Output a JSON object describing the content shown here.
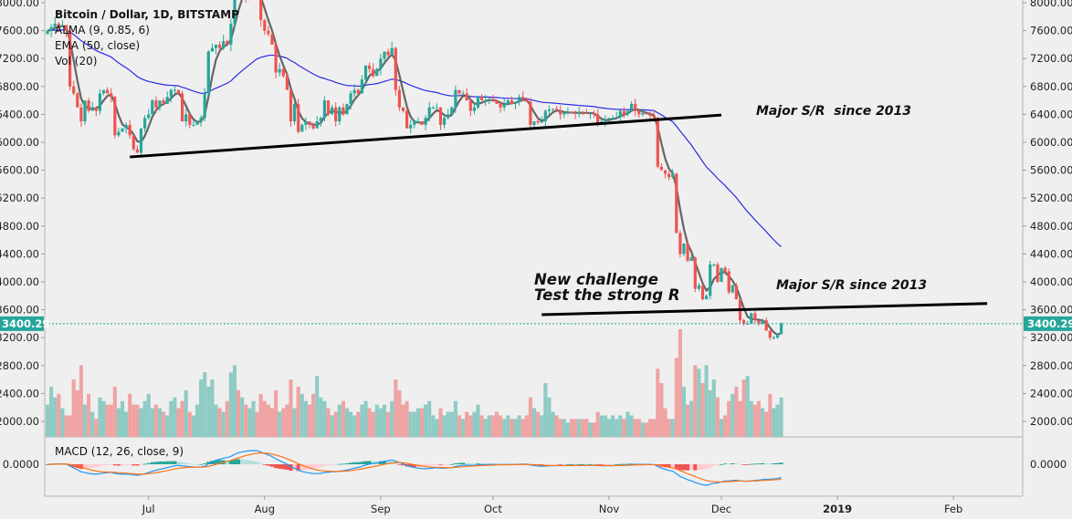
{
  "legend": {
    "title": "Bitcoin / Dollar, 1D, BITSTAMP",
    "alma": "ALMA (9, 0.85, 6)",
    "ema": "EMA (50, close)",
    "vol": "Vol (20)",
    "macd": "MACD (12, 26, close, 9)"
  },
  "annotations": {
    "new_challenge_line1": "New challenge",
    "new_challenge_line2": "Test the strong R",
    "major_sr_upper": "Major S/R  since 2013",
    "major_sr_lower": "Major S/R since 2013"
  },
  "colors": {
    "up": "#26a69a",
    "down": "#ef5350",
    "vol_up": "#8ecbc4",
    "vol_down": "#efa3a2",
    "ema": "#2a2ae6",
    "alma": "#555555",
    "macd": "#2196f3",
    "signal": "#ff7316",
    "background": "#efefef",
    "last_price": "#26a69a"
  },
  "chart_data": {
    "type": "candlestick",
    "symbol": "Bitcoin / Dollar",
    "interval": "1D",
    "exchange": "BITSTAMP",
    "start_date": "2018-06-04",
    "last_price": "3400.29",
    "price_ticks": [
      "8000.00",
      "7600.00",
      "7200.00",
      "6800.00",
      "6400.00",
      "6000.00",
      "5600.00",
      "5200.00",
      "4800.00",
      "4400.00",
      "4000.00",
      "3600.00",
      "3200.00",
      "2800.00",
      "2400.00",
      "2000.00"
    ],
    "macd_ticks": [
      "0.0000"
    ],
    "time_ticks": [
      {
        "label": "Jul",
        "date": "2018-07-01",
        "bold": false
      },
      {
        "label": "Aug",
        "date": "2018-08-01",
        "bold": false
      },
      {
        "label": "Sep",
        "date": "2018-09-01",
        "bold": false
      },
      {
        "label": "Oct",
        "date": "2018-10-01",
        "bold": false
      },
      {
        "label": "Nov",
        "date": "2018-11-01",
        "bold": false
      },
      {
        "label": "Dec",
        "date": "2018-12-01",
        "bold": false
      },
      {
        "label": "2019",
        "date": "2019-01-01",
        "bold": true
      },
      {
        "label": "Feb",
        "date": "2019-02-01",
        "bold": false
      }
    ],
    "first_open": 7550,
    "close": [
      7600,
      7650,
      7700,
      7650,
      7680,
      7600,
      6800,
      6700,
      6500,
      6300,
      6600,
      6450,
      6500,
      6450,
      6700,
      6750,
      6700,
      6650,
      6100,
      6150,
      6200,
      6250,
      6100,
      5900,
      5850,
      6200,
      6350,
      6400,
      6600,
      6500,
      6600,
      6550,
      6650,
      6750,
      6750,
      6700,
      6300,
      6400,
      6250,
      6250,
      6300,
      6350,
      6700,
      7300,
      7350,
      7400,
      7350,
      7450,
      7400,
      7700,
      8200,
      8150,
      8200,
      8100,
      8200,
      8200,
      8150,
      7750,
      7600,
      7550,
      7400,
      7000,
      7050,
      6950,
      6750,
      6300,
      6550,
      6150,
      6250,
      6300,
      6250,
      6200,
      6300,
      6350,
      6600,
      6400,
      6500,
      6300,
      6500,
      6400,
      6550,
      6700,
      6750,
      6700,
      6900,
      7100,
      7050,
      6950,
      7050,
      7200,
      7300,
      7250,
      7350,
      6750,
      6500,
      6450,
      6200,
      6250,
      6300,
      6300,
      6250,
      6350,
      6500,
      6500,
      6500,
      6250,
      6350,
      6400,
      6500,
      6750,
      6700,
      6700,
      6600,
      6450,
      6500,
      6650,
      6600,
      6600,
      6620,
      6600,
      6550,
      6500,
      6550,
      6600,
      6550,
      6580,
      6650,
      6620,
      6580,
      6250,
      6300,
      6280,
      6300,
      6450,
      6470,
      6480,
      6450,
      6400,
      6420,
      6440,
      6420,
      6410,
      6430,
      6420,
      6410,
      6420,
      6400,
      6250,
      6300,
      6330,
      6350,
      6350,
      6360,
      6450,
      6400,
      6450,
      6550,
      6450,
      6400,
      6420,
      6400,
      6380,
      6350,
      5650,
      5600,
      5550,
      5500,
      5550,
      4700,
      4400,
      4550,
      4300,
      4350,
      3900,
      3950,
      3750,
      3800,
      4250,
      4250,
      4000,
      4200,
      4150,
      3850,
      3950,
      3750,
      3450,
      3400,
      3400,
      3550,
      3450,
      3400,
      3450,
      3300,
      3200,
      3200,
      3250,
      3400.29
    ],
    "volume_relative": [
      9,
      14,
      11,
      12,
      8,
      6,
      6,
      16,
      13,
      20,
      9,
      12,
      7,
      5,
      11,
      10,
      9,
      9,
      14,
      8,
      10,
      7,
      12,
      9,
      9,
      8,
      10,
      12,
      8,
      9,
      8,
      7,
      6,
      10,
      11,
      8,
      10,
      13,
      7,
      6,
      9,
      16,
      18,
      14,
      16,
      9,
      8,
      7,
      10,
      18,
      20,
      13,
      11,
      9,
      8,
      10,
      7,
      12,
      10,
      9,
      8,
      13,
      7,
      8,
      9,
      16,
      8,
      14,
      12,
      10,
      9,
      12,
      17,
      11,
      10,
      8,
      6,
      7,
      9,
      10,
      8,
      7,
      6,
      7,
      9,
      10,
      8,
      7,
      9,
      8,
      9,
      7,
      10,
      16,
      13,
      9,
      10,
      7,
      7,
      8,
      8,
      9,
      10,
      6,
      5,
      8,
      6,
      7,
      7,
      10,
      6,
      5,
      7,
      6,
      7,
      9,
      6,
      5,
      6,
      6,
      7,
      6,
      5,
      6,
      5,
      5,
      6,
      5,
      6,
      11,
      8,
      7,
      6,
      15,
      11,
      7,
      6,
      5,
      5,
      4,
      5,
      5,
      5,
      5,
      5,
      4,
      4,
      7,
      6,
      6,
      5,
      6,
      5,
      6,
      5,
      7,
      6,
      5,
      5,
      4,
      4,
      5,
      5,
      19,
      15,
      8,
      5,
      5,
      22,
      30,
      14,
      9,
      10,
      20,
      19,
      15,
      20,
      13,
      16,
      11,
      5,
      6,
      10,
      12,
      14,
      10,
      16,
      17,
      10,
      9,
      10,
      8,
      7,
      12,
      8,
      9,
      11
    ],
    "trendlines": [
      {
        "name": "major-sr-upper",
        "from": {
          "date": "2018-06-26",
          "price": 5790
        },
        "to": {
          "date": "2018-12-01",
          "price": 6390
        }
      },
      {
        "name": "major-sr-lower",
        "from": {
          "date": "2018-10-14",
          "price": 3530
        },
        "to": {
          "date": "2019-02-10",
          "price": 3690
        }
      }
    ],
    "indicators": [
      "ALMA (9, 0.85, 6)",
      "EMA (50, close)",
      "Vol (20)",
      "MACD (12, 26, close, 9)"
    ]
  }
}
